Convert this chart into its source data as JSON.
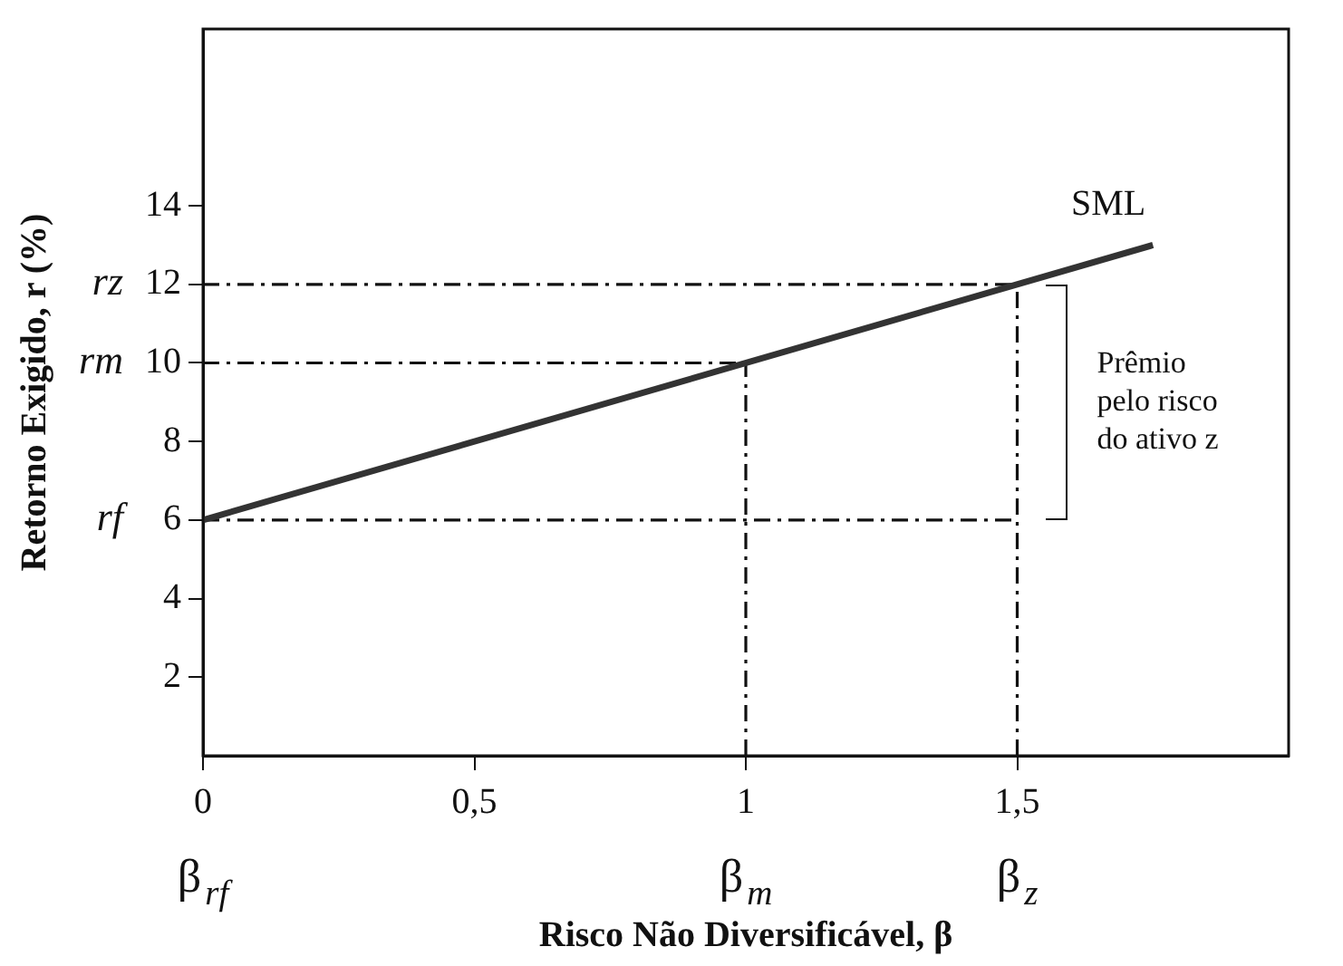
{
  "chart_data": {
    "type": "line",
    "xlabel": "Risco Não Diversificável, β",
    "ylabel": "Retorno Exigido, r (%)",
    "xlim": [
      0,
      2
    ],
    "ylim": [
      0,
      18.5
    ],
    "xticks": [
      0,
      {
        "value": 0.5,
        "label": "0,5"
      },
      1,
      {
        "value": 1.5,
        "label": "1,5"
      }
    ],
    "yticks": [
      2,
      4,
      6,
      8,
      10,
      12,
      14
    ],
    "grid": false,
    "legend": false,
    "marker": "none",
    "series": [
      {
        "name": "SML",
        "color": "#333333",
        "x": [
          0,
          1.75
        ],
        "values": [
          6,
          13
        ],
        "line_style": "solid"
      },
      {
        "color": "#111111",
        "x": [
          0,
          1.5
        ],
        "values": [
          6,
          6
        ],
        "line_style": "dashed"
      },
      {
        "color": "#111111",
        "x": [
          0,
          1
        ],
        "values": [
          10,
          10
        ],
        "line_style": "dashed"
      },
      {
        "color": "#111111",
        "x": [
          0,
          1.5
        ],
        "values": [
          12,
          12
        ],
        "line_style": "dashed"
      },
      {
        "color": "#111111",
        "x": [
          1,
          1
        ],
        "values": [
          0,
          10
        ],
        "line_style": "dashed"
      },
      {
        "color": "#111111",
        "x": [
          1.5,
          1.5
        ],
        "values": [
          0,
          12
        ],
        "line_style": "dashed"
      }
    ],
    "annotations": [
      {
        "text": "rf",
        "x": 0,
        "y": 6
      },
      {
        "text": "rm",
        "x": 0,
        "y": 10
      },
      {
        "text": "rz",
        "x": 0,
        "y": 12
      },
      "β$_{rf}$",
      {
        "text": "β$_{m}$",
        "x": 1,
        "y": 0
      },
      {
        "text": "β$_{z}$",
        "x": 1.5,
        "y": 0
      },
      "Prêmio\npelo risco\ndo ativo z"
    ]
  }
}
